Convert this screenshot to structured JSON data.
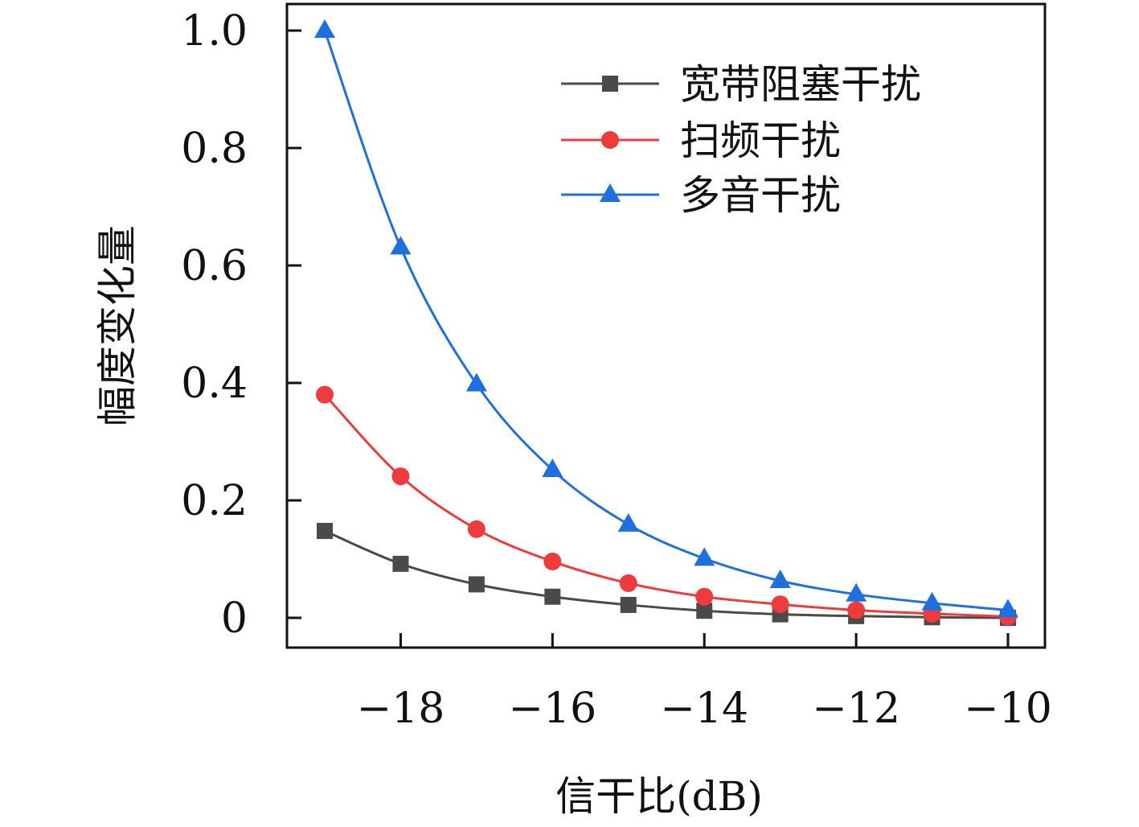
{
  "chart_data": {
    "type": "line",
    "title": "",
    "xlabel": "信干比(dB)",
    "ylabel": "幅度变化量",
    "xlim": [
      -19.5,
      -9.5
    ],
    "ylim": [
      -0.05,
      1.05
    ],
    "xticks": [
      -18,
      -16,
      -14,
      -12,
      -10
    ],
    "xtick_labels": [
      "−18",
      "−16",
      "−14",
      "−12",
      "−10"
    ],
    "yticks": [
      0,
      0.2,
      0.4,
      0.6,
      0.8,
      1.0
    ],
    "ytick_labels": [
      "0",
      "0.2",
      "0.4",
      "0.6",
      "0.8",
      "1.0"
    ],
    "grid": false,
    "legend_position": "top-right",
    "x": [
      -19,
      -18,
      -17,
      -16,
      -15,
      -14,
      -13,
      -12,
      -11,
      -10
    ],
    "series": [
      {
        "name": "宽带阻塞干扰",
        "color": "#4a4a4a",
        "marker": "square",
        "values": [
          0.148,
          0.092,
          0.057,
          0.036,
          0.022,
          0.012,
          0.006,
          0.003,
          0.001,
          0.0
        ]
      },
      {
        "name": "扫频干扰",
        "color": "#ef3b3b",
        "marker": "circle",
        "values": [
          0.38,
          0.241,
          0.151,
          0.096,
          0.059,
          0.036,
          0.023,
          0.013,
          0.007,
          0.002
        ]
      },
      {
        "name": "多音干扰",
        "color": "#1f6fe0",
        "marker": "triangle",
        "values": [
          1.0,
          0.631,
          0.398,
          0.252,
          0.159,
          0.101,
          0.063,
          0.04,
          0.025,
          0.013
        ]
      }
    ]
  }
}
